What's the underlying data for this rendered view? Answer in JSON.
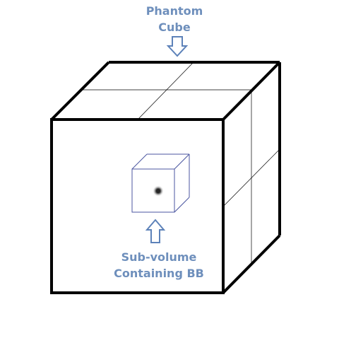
{
  "labels": {
    "phantom_line1": "Phantom",
    "phantom_line2": "Cube",
    "subvolume_line1": "Sub-volume",
    "subvolume_line2": "Containing BB"
  },
  "colors": {
    "label_text": "#6e8fbc",
    "arrow_stroke": "#5d82b9",
    "cube_edge": "#000000",
    "subvolume_edge": "#4b56a0",
    "bb_marker": "#333333"
  },
  "icons": {
    "arrow_down": "down-arrow-icon",
    "arrow_up": "up-arrow-icon"
  }
}
